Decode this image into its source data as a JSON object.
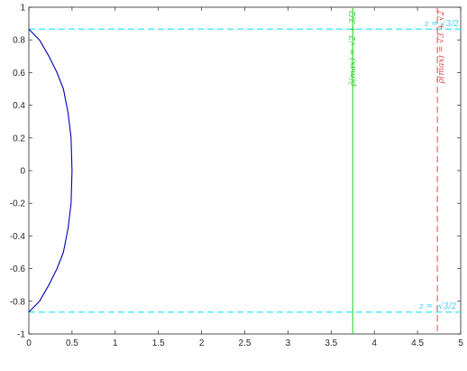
{
  "chart_data": {
    "type": "line",
    "title": "",
    "xlabel": "",
    "ylabel": "",
    "xlim": [
      0,
      5
    ],
    "ylim": [
      -1,
      1
    ],
    "x_ticks": [
      0,
      0.5,
      1,
      1.5,
      2,
      2.5,
      3,
      3.5,
      4,
      4.5,
      5
    ],
    "x_tick_labels": [
      "0",
      "0.5",
      "1",
      "1.5",
      "2",
      "2.5",
      "3",
      "3.5",
      "4",
      "4.5",
      "5"
    ],
    "y_ticks": [
      -1,
      -0.8,
      -0.6,
      -0.4,
      -0.2,
      0,
      0.2,
      0.4,
      0.6,
      0.8,
      1
    ],
    "y_tick_labels": [
      "-1",
      "-0.8",
      "-0.6",
      "-0.4",
      "-0.2",
      "0",
      "0.2",
      "0.4",
      "0.6",
      "0.8",
      "1"
    ],
    "grid": false,
    "series": [
      {
        "style": "solid",
        "color": "#0000b4",
        "x": [
          0,
          0.123,
          0.232,
          0.326,
          0.4,
          0.455,
          0.489,
          0.5,
          0.489,
          0.455,
          0.4,
          0.326,
          0.232,
          0.123,
          0
        ],
        "y": [
          0.866,
          0.8,
          0.7,
          0.6,
          0.5,
          0.35,
          0.2,
          0,
          -0.2,
          -0.35,
          -0.5,
          -0.6,
          -0.7,
          -0.8,
          -0.866
        ]
      }
    ],
    "hlines": [
      {
        "y": 0.866,
        "color": "#33e6f2",
        "style": "dashed"
      },
      {
        "y": -0.866,
        "color": "#33e6f2",
        "style": "dashed"
      }
    ],
    "vlines": [
      {
        "x": 3.75,
        "color": "#33dd33",
        "style": "solid"
      },
      {
        "x": 4.73,
        "color": "#ee6666",
        "style": "dashed"
      }
    ],
    "annotations": [
      {
        "text": "ρ̂(max) = √2 + 3/2",
        "x": 3.78,
        "y": 0.98,
        "color": "#33cc33",
        "rotate": -90
      },
      {
        "text": "ρ̂(max) = √3 + √2",
        "x": 4.8,
        "y": 0.98,
        "color": "#dd4444",
        "rotate": -90
      },
      {
        "text": "z = √3/2",
        "x": 4.58,
        "y": 0.885,
        "color": "#33ccee",
        "rotate": 0
      },
      {
        "text": "z = -√3/2",
        "x": 4.52,
        "y": -0.845,
        "color": "#33ccee",
        "rotate": 0
      }
    ]
  }
}
